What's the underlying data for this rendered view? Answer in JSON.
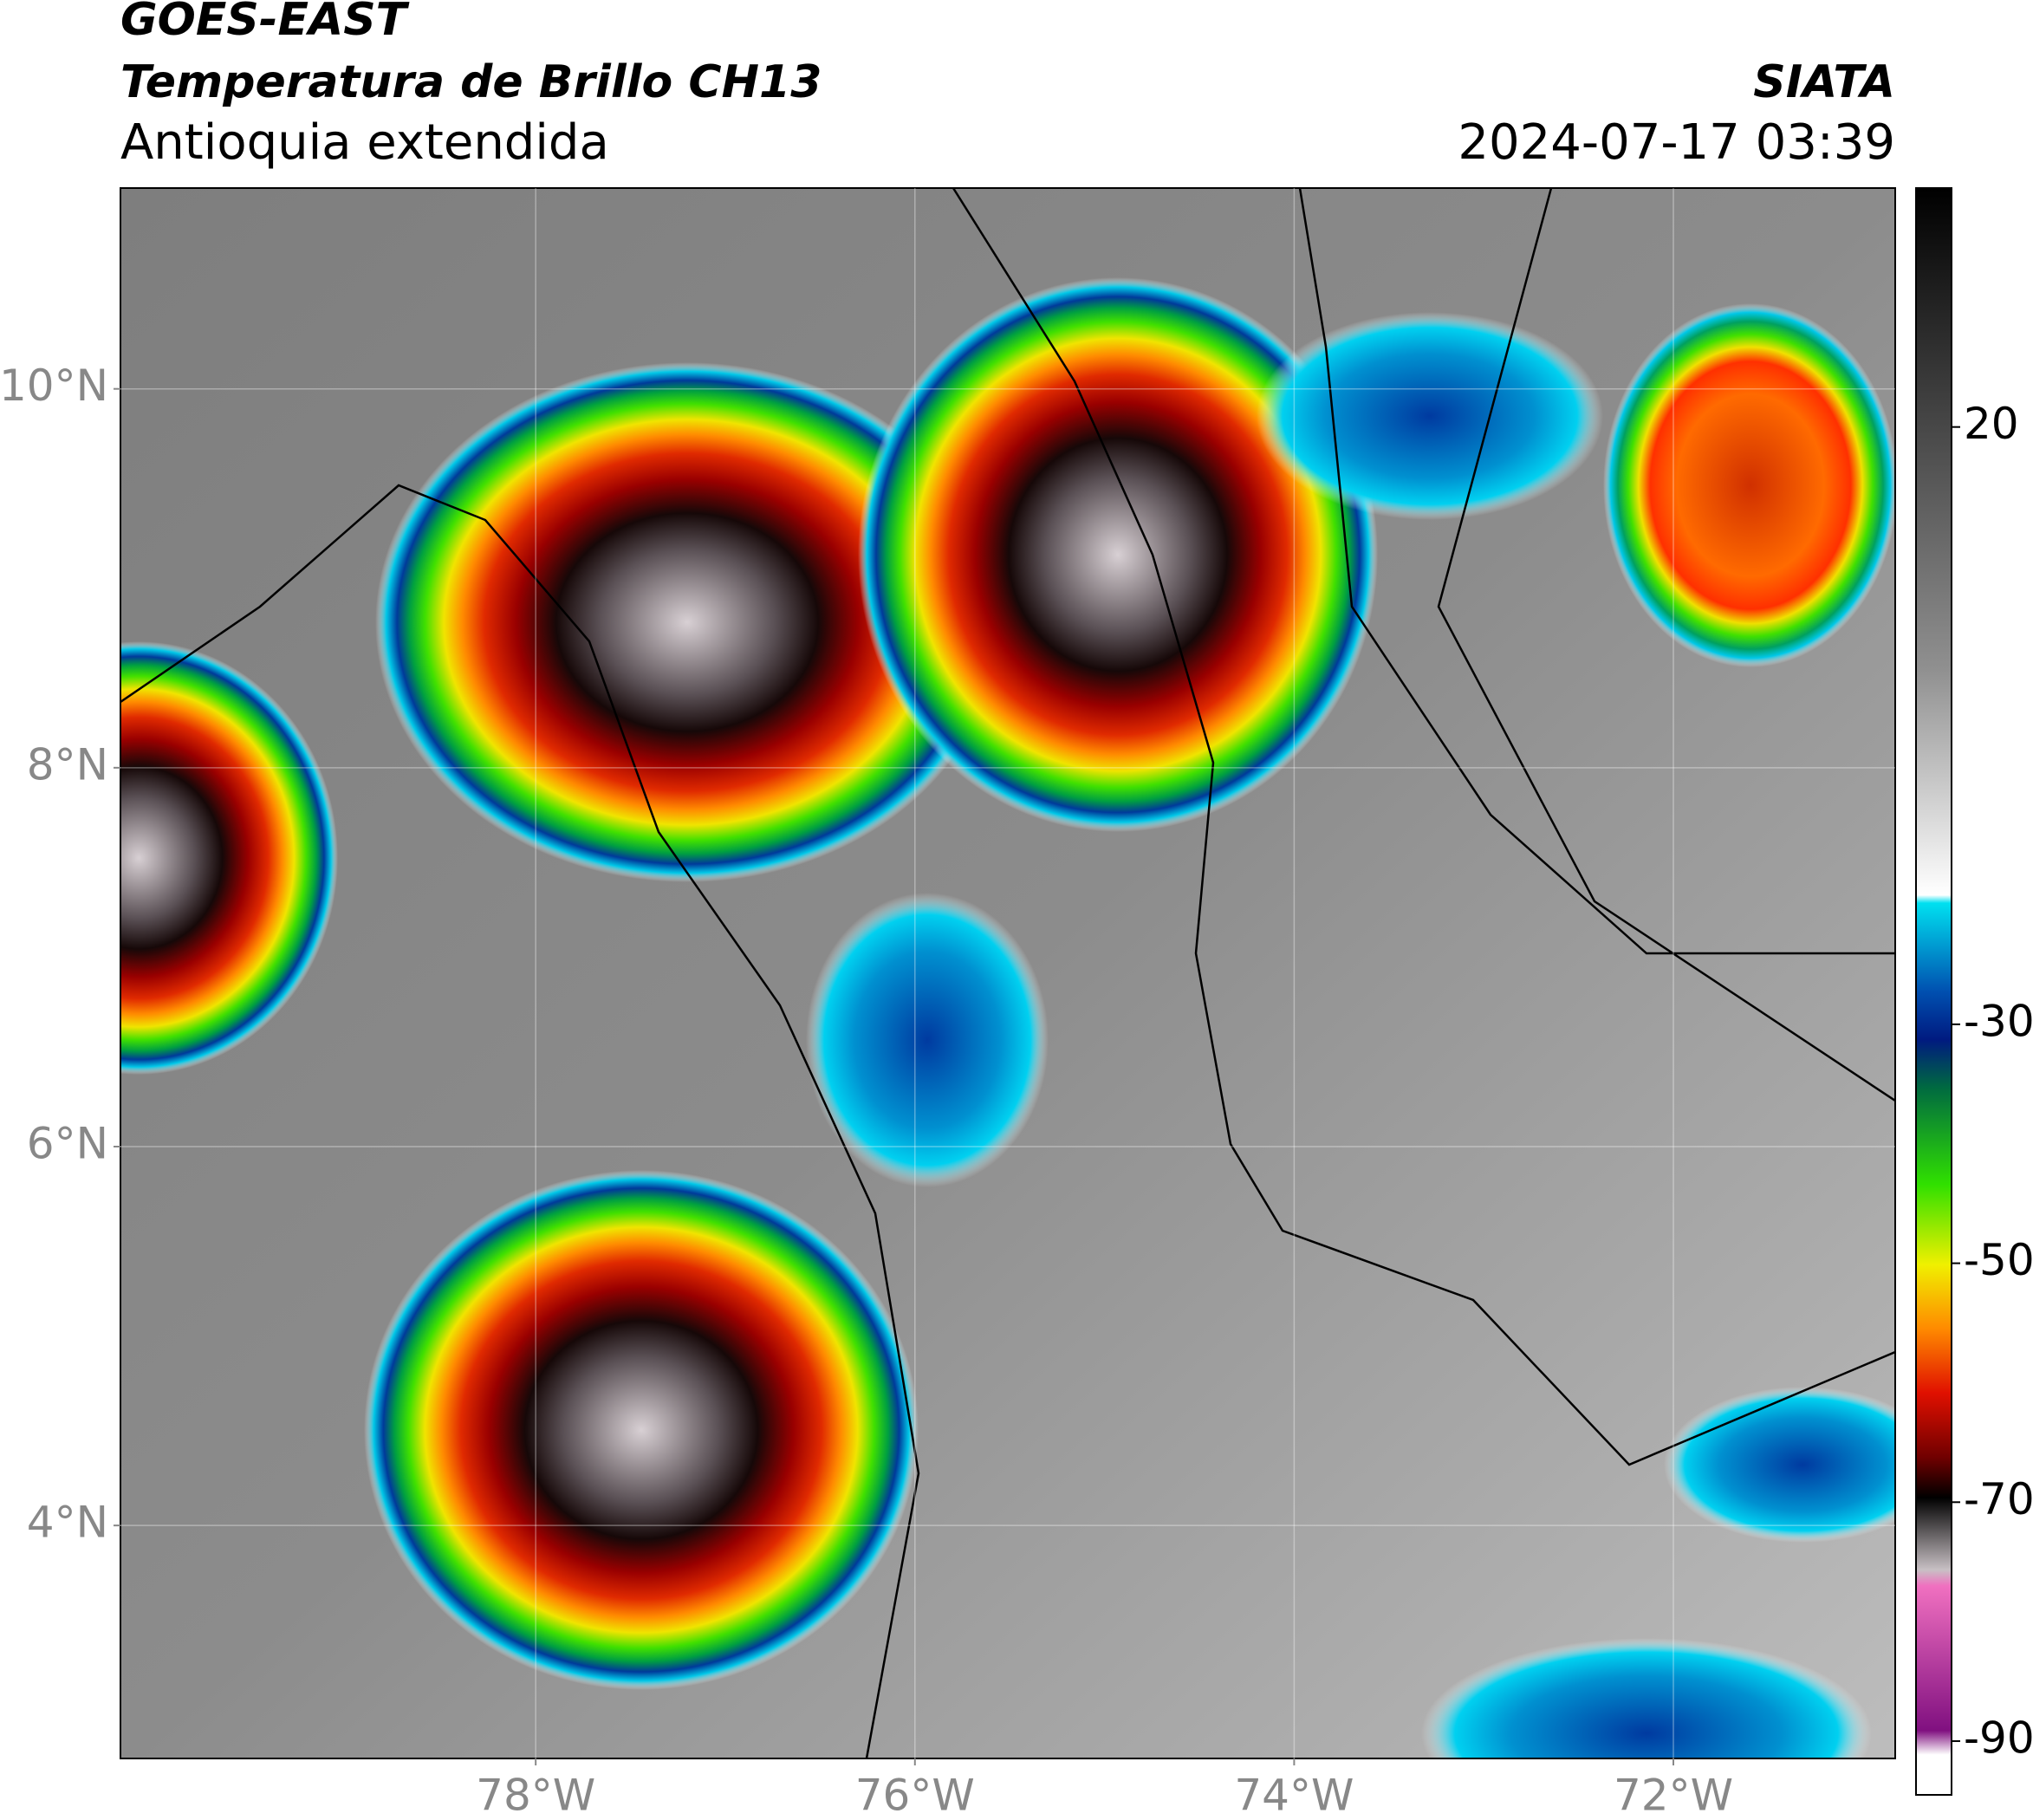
{
  "header": {
    "title": "GOES-EAST",
    "subtitle": "Temperatura de Brillo CH13",
    "region": "Antioquia extendida",
    "source": "SIATA",
    "datetime": "2024-07-17 03:39"
  },
  "map": {
    "xlim": [
      -80.19,
      -70.83
    ],
    "ylim": [
      2.77,
      11.06
    ],
    "lon_ticks": [
      {
        "value": -78,
        "label": "78°W"
      },
      {
        "value": -76,
        "label": "76°W"
      },
      {
        "value": -74,
        "label": "74°W"
      },
      {
        "value": -72,
        "label": "72°W"
      }
    ],
    "lat_ticks": [
      {
        "value": 10,
        "label": "10°N"
      },
      {
        "value": 8,
        "label": "8°N"
      },
      {
        "value": 6,
        "label": "6°N"
      },
      {
        "value": 4,
        "label": "4°N"
      }
    ]
  },
  "colorbar": {
    "lim": [
      -94.5,
      40
    ],
    "ticks": [
      20,
      -30,
      -50,
      -70,
      -90
    ]
  }
}
